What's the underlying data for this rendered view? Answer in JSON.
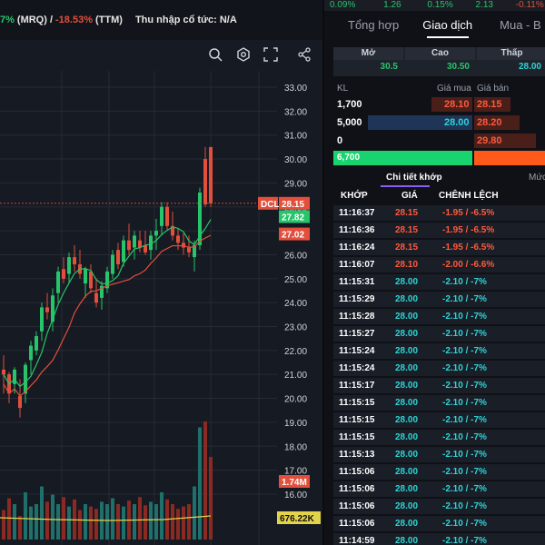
{
  "top_info": {
    "pct_green": "7%",
    "mrq": "(MRQ) /",
    "pct_red": "-18.53%",
    "ttm": "(TTM)",
    "dividend": "Thu nhập cổ tức: N/A"
  },
  "ticker": [
    "0.09%",
    "1.26",
    "0.15%",
    "2.13",
    "-0.11%"
  ],
  "tabs": [
    "Tổng hợp",
    "Giao dịch",
    "Mua - B"
  ],
  "ohl": {
    "headers": [
      "Mở",
      "Cao",
      "Thấp"
    ],
    "values": [
      "30.5",
      "30.50",
      "28.00"
    ]
  },
  "orderbook": {
    "header": {
      "kl": "KL",
      "bid": "Giá mua",
      "ask": "Giá bán"
    },
    "rows": [
      {
        "vol": "1,700",
        "bid": "28.10",
        "ask": "28.15"
      },
      {
        "vol": "5,000",
        "bid": "28.00",
        "ask": "28.20"
      },
      {
        "vol": "0",
        "bid": "",
        "ask": "29.80"
      }
    ],
    "total": "6,700"
  },
  "subtabs": {
    "active": "Chi tiết khớp",
    "other": "Mức"
  },
  "trade_header": {
    "time": "KHỚP",
    "price": "GIÁ",
    "change": "CHÊNH LỆCH"
  },
  "trades": [
    {
      "time": "11:16:37",
      "price": "28.15",
      "change": "-1.95 / -6.5%",
      "color": "red"
    },
    {
      "time": "11:16:36",
      "price": "28.15",
      "change": "-1.95 / -6.5%",
      "color": "red"
    },
    {
      "time": "11:16:24",
      "price": "28.15",
      "change": "-1.95 / -6.5%",
      "color": "red"
    },
    {
      "time": "11:16:07",
      "price": "28.10",
      "change": "-2.00 / -6.6%",
      "color": "red"
    },
    {
      "time": "11:15:31",
      "price": "28.00",
      "change": "-2.10 / -7%",
      "color": "cyan"
    },
    {
      "time": "11:15:29",
      "price": "28.00",
      "change": "-2.10 / -7%",
      "color": "cyan"
    },
    {
      "time": "11:15:28",
      "price": "28.00",
      "change": "-2.10 / -7%",
      "color": "cyan"
    },
    {
      "time": "11:15:27",
      "price": "28.00",
      "change": "-2.10 / -7%",
      "color": "cyan"
    },
    {
      "time": "11:15:24",
      "price": "28.00",
      "change": "-2.10 / -7%",
      "color": "cyan"
    },
    {
      "time": "11:15:24",
      "price": "28.00",
      "change": "-2.10 / -7%",
      "color": "cyan"
    },
    {
      "time": "11:15:17",
      "price": "28.00",
      "change": "-2.10 / -7%",
      "color": "cyan"
    },
    {
      "time": "11:15:15",
      "price": "28.00",
      "change": "-2.10 / -7%",
      "color": "cyan"
    },
    {
      "time": "11:15:15",
      "price": "28.00",
      "change": "-2.10 / -7%",
      "color": "cyan"
    },
    {
      "time": "11:15:15",
      "price": "28.00",
      "change": "-2.10 / -7%",
      "color": "cyan"
    },
    {
      "time": "11:15:13",
      "price": "28.00",
      "change": "-2.10 / -7%",
      "color": "cyan"
    },
    {
      "time": "11:15:06",
      "price": "28.00",
      "change": "-2.10 / -7%",
      "color": "cyan"
    },
    {
      "time": "11:15:06",
      "price": "28.00",
      "change": "-2.10 / -7%",
      "color": "cyan"
    },
    {
      "time": "11:15:06",
      "price": "28.00",
      "change": "-2.10 / -7%",
      "color": "cyan"
    },
    {
      "time": "11:15:06",
      "price": "28.00",
      "change": "-2.10 / -7%",
      "color": "cyan"
    },
    {
      "time": "11:14:59",
      "price": "28.00",
      "change": "-2.10 / -7%",
      "color": "cyan"
    }
  ],
  "chart": {
    "price_ticks": [
      "33.00",
      "32.00",
      "31.00",
      "30.00",
      "29.00",
      "28.00",
      "27.00",
      "26.00",
      "25.00",
      "24.00",
      "23.00",
      "22.00",
      "21.00",
      "20.00",
      "19.00",
      "18.00",
      "17.00",
      "16.00"
    ],
    "labels": {
      "dcl": "DCL",
      "last": "28.15",
      "ma1": "27.82",
      "ma2": "27.02",
      "vol1": "1.74M",
      "vol2": "676.22K"
    },
    "icons": [
      "zoom-icon",
      "settings-icon",
      "fullscreen-icon",
      "share-icon"
    ]
  },
  "colors": {
    "up": "#27c46b",
    "down": "#e24f3c",
    "cyan": "#2fd3d6",
    "orange": "#ff5a1a"
  }
}
